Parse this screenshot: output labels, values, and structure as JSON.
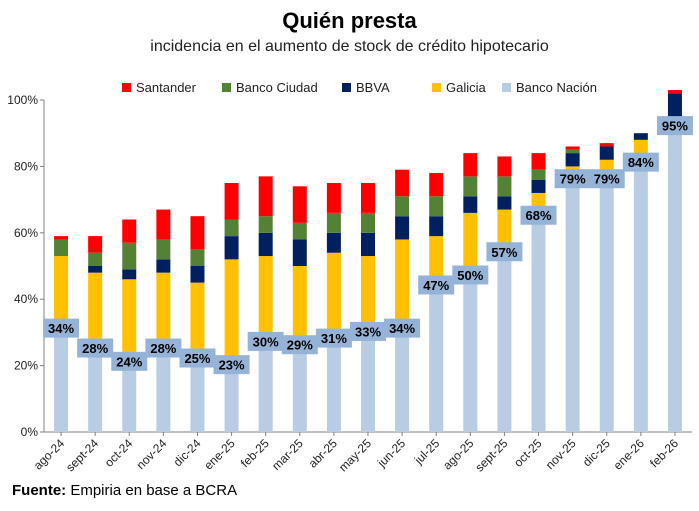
{
  "header": {
    "title": "Quién presta",
    "subtitle": "incidencia en el aumento de stock de crédito hipotecario"
  },
  "footer": {
    "source_label": "Fuente:",
    "source_text": "Empiria en base a BCRA"
  },
  "chart_data": {
    "type": "bar",
    "stacked": true,
    "categories": [
      "ago-24",
      "sept-24",
      "oct-24",
      "nov-24",
      "dic-24",
      "ene-25",
      "feb-25",
      "mar-25",
      "abr-25",
      "may-25",
      "jun-25",
      "jul-25",
      "ago-25",
      "sept-25",
      "oct-25",
      "nov-25",
      "dic-25",
      "ene-26",
      "feb-26"
    ],
    "ylim": [
      0,
      100
    ],
    "yticks": [
      0,
      20,
      40,
      60,
      80,
      100
    ],
    "ytick_labels": [
      "0%",
      "20%",
      "40%",
      "60%",
      "80%",
      "100%"
    ],
    "grid": false,
    "legend_position": "top",
    "series": [
      {
        "name": "Banco Nación",
        "color": "#B8CCE4",
        "values": [
          34,
          28,
          24,
          28,
          25,
          23,
          30,
          29,
          31,
          33,
          34,
          47,
          50,
          57,
          68,
          79,
          79,
          84,
          95
        ]
      },
      {
        "name": "Galicia",
        "color": "#FFC000",
        "values": [
          19,
          20,
          22,
          20,
          20,
          29,
          23,
          21,
          23,
          20,
          24,
          12,
          16,
          10,
          4,
          1,
          3,
          4,
          0
        ]
      },
      {
        "name": "BBVA",
        "color": "#002060",
        "values": [
          0,
          2,
          3,
          4,
          5,
          7,
          7,
          8,
          6,
          7,
          7,
          6,
          5,
          4,
          4,
          4,
          4,
          2,
          7
        ]
      },
      {
        "name": "Banco Ciudad",
        "color": "#548235",
        "values": [
          5,
          4,
          8,
          6,
          5,
          5,
          5,
          5,
          6,
          6,
          6,
          6,
          6,
          6,
          3,
          1,
          0,
          0,
          0
        ]
      },
      {
        "name": "Santander",
        "color": "#FF0000",
        "values": [
          1,
          5,
          7,
          9,
          10,
          11,
          12,
          11,
          9,
          9,
          8,
          7,
          7,
          6,
          5,
          1,
          1,
          0,
          1
        ]
      }
    ],
    "legend_order": [
      "Santander",
      "Banco Ciudad",
      "BBVA",
      "Galicia",
      "Banco Nación"
    ],
    "data_labels": [
      "34%",
      "28%",
      "24%",
      "28%",
      "25%",
      "23%",
      "30%",
      "29%",
      "31%",
      "33%",
      "34%",
      "47%",
      "50%",
      "57%",
      "68%",
      "79%",
      "79%",
      "84%",
      "95%"
    ],
    "data_label_box_color": "#95B3D7"
  }
}
